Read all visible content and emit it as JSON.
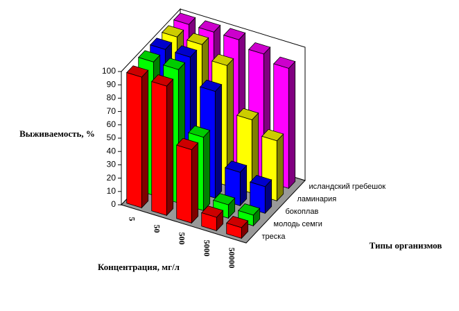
{
  "chart_data": {
    "type": "bar",
    "y_label": "Выживаемость, %",
    "x_label": "Концентрация, мг/л",
    "z_label": "Типы организмов",
    "categories": [
      "5",
      "50",
      "500",
      "5000",
      "50000"
    ],
    "series": [
      {
        "name": "треска",
        "color": "#ff0000",
        "values": [
          98,
          97,
          55,
          10,
          8
        ]
      },
      {
        "name": "молодь семги",
        "color": "#00ff00",
        "values": [
          100,
          100,
          55,
          10,
          8
        ]
      },
      {
        "name": "бокоплав",
        "color": "#0000ff",
        "values": [
          100,
          100,
          80,
          25,
          20
        ]
      },
      {
        "name": "ламинария",
        "color": "#ffff00",
        "values": [
          100,
          100,
          90,
          55,
          45
        ]
      },
      {
        "name": "исландский гребешок",
        "color": "#ff00ff",
        "values": [
          100,
          100,
          100,
          95,
          90
        ]
      }
    ],
    "ylim": [
      0,
      100
    ],
    "yticks": [
      0,
      10,
      20,
      30,
      40,
      50,
      60,
      70,
      80,
      90,
      100
    ]
  }
}
